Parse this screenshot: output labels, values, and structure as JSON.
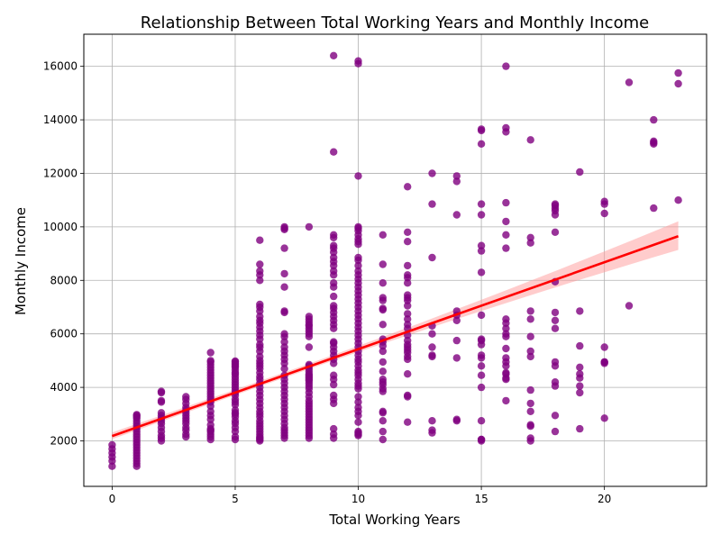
{
  "chart_data": {
    "type": "scatter",
    "title": "Relationship Between Total Working Years and Monthly Income",
    "xlabel": "Total Working Years",
    "ylabel": "Monthly Income",
    "xlim": [
      -1.15,
      24.15
    ],
    "ylim": [
      300,
      17200
    ],
    "xticks": [
      0,
      5,
      10,
      15,
      20
    ],
    "yticks": [
      2000,
      4000,
      6000,
      8000,
      10000,
      12000,
      14000,
      16000
    ],
    "grid": true,
    "legend": "none",
    "point_color": "#800080",
    "point_opacity": 0.8,
    "regression": {
      "color": "#ff0000",
      "band_color": "#ff9a9a",
      "x": [
        0,
        23
      ],
      "y": [
        2180,
        9650
      ],
      "ci_lower": [
        1950,
        8950
      ],
      "ci_upper": [
        2450,
        10400
      ]
    },
    "series": [
      {
        "x": [
          0,
          0,
          0,
          0,
          0,
          0,
          1,
          1,
          1,
          1,
          1,
          1,
          1,
          1,
          1,
          1,
          1,
          1,
          1,
          1,
          1,
          1,
          1,
          1,
          1,
          1,
          1,
          1,
          2,
          2,
          2,
          2,
          2,
          2,
          2,
          2,
          2,
          2,
          2,
          2,
          2,
          2,
          3,
          3,
          3,
          3,
          3,
          3,
          3,
          3,
          3,
          3,
          3,
          3,
          3,
          3,
          4,
          4,
          4,
          4,
          4,
          4,
          4,
          4,
          4,
          4,
          4,
          4,
          4,
          4,
          4,
          4,
          4,
          4,
          4,
          4,
          4,
          4,
          4,
          4,
          4,
          4,
          4,
          4,
          4,
          5,
          5,
          5,
          5,
          5,
          5,
          5,
          5,
          5,
          5,
          5,
          5,
          5,
          5,
          5,
          5,
          5,
          5,
          5,
          5,
          5,
          5,
          5,
          5,
          5,
          5,
          5,
          5,
          5,
          5,
          6,
          6,
          6,
          6,
          6,
          6,
          6,
          6,
          6,
          6,
          6,
          6,
          6,
          6,
          6,
          6,
          6,
          6,
          6,
          6,
          6,
          6,
          6,
          6,
          6,
          6,
          6,
          6,
          6,
          6,
          6,
          6,
          6,
          6,
          6,
          6,
          6,
          6,
          6,
          6,
          6,
          6,
          6,
          6,
          6,
          6,
          7,
          7,
          7,
          7,
          7,
          7,
          7,
          7,
          7,
          7,
          7,
          7,
          7,
          7,
          7,
          7,
          7,
          7,
          7,
          7,
          7,
          7,
          7,
          7,
          7,
          7,
          7,
          7,
          7,
          7,
          7,
          7,
          7,
          7,
          7,
          8,
          8,
          8,
          8,
          8,
          8,
          8,
          8,
          8,
          8,
          8,
          8,
          8,
          8,
          8,
          8,
          8,
          8,
          8,
          8,
          8,
          8,
          8,
          8,
          8,
          8,
          8,
          8,
          8,
          8,
          8,
          8,
          8,
          8,
          8,
          8,
          8,
          8,
          8,
          8,
          8,
          9,
          9,
          9,
          9,
          9,
          9,
          9,
          9,
          9,
          9,
          9,
          9,
          9,
          9,
          9,
          9,
          9,
          9,
          9,
          9,
          9,
          9,
          9,
          9,
          9,
          9,
          9,
          9,
          9,
          9,
          9,
          9,
          9,
          9,
          9,
          9,
          9,
          9,
          10,
          10,
          10,
          10,
          10,
          10,
          10,
          10,
          10,
          10,
          10,
          10,
          10,
          10,
          10,
          10,
          10,
          10,
          10,
          10,
          10,
          10,
          10,
          10,
          10,
          10,
          10,
          10,
          10,
          10,
          10,
          10,
          10,
          10,
          10,
          10,
          10,
          10,
          10,
          10,
          10,
          10,
          10,
          10,
          10,
          10,
          10,
          10,
          10,
          10,
          10,
          10,
          10,
          10,
          10,
          11,
          11,
          11,
          11,
          11,
          11,
          11,
          11,
          11,
          11,
          11,
          11,
          11,
          11,
          11,
          11,
          11,
          11,
          11,
          11,
          11,
          11,
          11,
          11,
          12,
          12,
          12,
          12,
          12,
          12,
          12,
          12,
          12,
          12,
          12,
          12,
          12,
          12,
          12,
          12,
          12,
          12,
          12,
          12,
          12,
          12,
          12,
          12,
          12,
          12,
          12,
          13,
          13,
          13,
          13,
          13,
          13,
          13,
          13,
          13,
          13,
          13,
          14,
          14,
          14,
          14,
          14,
          14,
          14,
          14,
          14,
          14,
          15,
          15,
          15,
          15,
          15,
          15,
          15,
          15,
          15,
          15,
          15,
          15,
          15,
          15,
          15,
          15,
          15,
          15,
          15,
          15,
          15,
          16,
          16,
          16,
          16,
          16,
          16,
          16,
          16,
          16,
          16,
          16,
          16,
          16,
          16,
          16,
          16,
          16,
          16,
          16,
          16,
          16,
          17,
          17,
          17,
          17,
          17,
          17,
          17,
          17,
          17,
          17,
          17,
          17,
          17,
          17,
          17,
          18,
          18,
          18,
          18,
          18,
          18,
          18,
          18,
          18,
          18,
          18,
          18,
          18,
          18,
          18,
          18,
          19,
          19,
          19,
          19,
          19,
          19,
          19,
          19,
          19,
          20,
          20,
          20,
          20,
          20,
          20,
          20,
          20,
          21,
          21,
          22,
          22,
          22,
          22,
          22,
          23,
          23,
          23
        ],
        "y": [
          1050,
          1250,
          1400,
          1550,
          1700,
          1850,
          1050,
          1150,
          1250,
          1350,
          1450,
          1550,
          1650,
          1750,
          1850,
          1950,
          2050,
          2150,
          2250,
          2350,
          2450,
          2550,
          2650,
          2750,
          2850,
          2950,
          2980,
          2900,
          2000,
          2100,
          2200,
          2350,
          2500,
          2650,
          2750,
          2850,
          2950,
          3050,
          3450,
          3500,
          3800,
          3850,
          2150,
          2250,
          2400,
          2500,
          2650,
          2750,
          2850,
          2950,
          3050,
          3150,
          3250,
          3400,
          3550,
          3650,
          2050,
          2250,
          2350,
          2450,
          2600,
          2800,
          2950,
          3100,
          3300,
          3450,
          3550,
          3650,
          3750,
          3850,
          3950,
          4050,
          4150,
          4250,
          4350,
          4450,
          4550,
          4650,
          4750,
          4850,
          4950,
          5000,
          5300,
          2150,
          2400,
          2050,
          2150,
          2350,
          2500,
          2650,
          2750,
          2900,
          3000,
          3050,
          3150,
          3550,
          3700,
          3800,
          3900,
          4000,
          4100,
          4200,
          4300,
          4400,
          4500,
          4550,
          4650,
          4750,
          4800,
          4850,
          4900,
          4950,
          4980,
          3350,
          3450,
          2000,
          2050,
          2100,
          2150,
          2250,
          2350,
          2450,
          2550,
          2650,
          2750,
          2900,
          3000,
          3100,
          3250,
          3400,
          3550,
          3700,
          3850,
          4000,
          4150,
          4300,
          4400,
          4550,
          4700,
          4800,
          4900,
          5000,
          5150,
          5350,
          5500,
          5600,
          5800,
          5950,
          6100,
          6250,
          6400,
          6500,
          6650,
          6850,
          7000,
          7100,
          8000,
          8200,
          8350,
          8600,
          9500,
          2100,
          2200,
          2300,
          2400,
          2500,
          2650,
          2800,
          2950,
          3100,
          3250,
          3400,
          3550,
          3700,
          3850,
          4000,
          4150,
          4300,
          4450,
          4700,
          4900,
          5050,
          5200,
          5350,
          5500,
          5700,
          5900,
          6000,
          6800,
          6850,
          7750,
          8250,
          9200,
          9950,
          10000,
          9900,
          2100,
          2200,
          2300,
          2400,
          2500,
          2600,
          2700,
          2800,
          2900,
          3000,
          3100,
          3200,
          3300,
          3400,
          3500,
          3650,
          3800,
          3950,
          4050,
          4150,
          4300,
          4400,
          4500,
          4600,
          4700,
          4800,
          4850,
          5500,
          5900,
          6000,
          6100,
          6200,
          6300,
          6350,
          6450,
          6550,
          6650,
          4250,
          4350,
          4450,
          10000,
          2100,
          2250,
          2450,
          3400,
          3550,
          3700,
          4100,
          4300,
          4450,
          4900,
          5050,
          5200,
          5350,
          5500,
          5650,
          5700,
          6200,
          6350,
          6500,
          6650,
          6800,
          6950,
          7050,
          7400,
          7750,
          7900,
          8200,
          8350,
          8550,
          8700,
          8850,
          9050,
          9200,
          9300,
          9600,
          9700,
          12800,
          16400,
          2200,
          2250,
          2350,
          2700,
          2950,
          3100,
          3250,
          3450,
          3650,
          3950,
          4050,
          4150,
          4300,
          4450,
          4550,
          4650,
          4800,
          4950,
          5050,
          5200,
          5350,
          5500,
          5650,
          5800,
          5950,
          6100,
          6250,
          6400,
          6550,
          6700,
          6850,
          7000,
          7150,
          7300,
          7450,
          7600,
          7750,
          7900,
          8050,
          8200,
          8350,
          8550,
          8750,
          8850,
          9350,
          9450,
          9550,
          9700,
          9850,
          9950,
          10000,
          11900,
          16200,
          16100,
          2300,
          2050,
          2350,
          3050,
          3100,
          3850,
          3950,
          4100,
          4200,
          4300,
          4600,
          4950,
          5350,
          5550,
          5700,
          5800,
          6350,
          6900,
          6950,
          7250,
          7350,
          7900,
          8600,
          9700,
          2750,
          2700,
          3650,
          3700,
          4500,
          5050,
          5150,
          5300,
          5400,
          5500,
          5600,
          5750,
          5950,
          6200,
          6350,
          6550,
          6750,
          7050,
          7250,
          7350,
          7450,
          7900,
          8100,
          8200,
          8550,
          9450,
          9800,
          11500,
          2300,
          2400,
          2750,
          5150,
          5200,
          5500,
          6000,
          6300,
          8850,
          10850,
          12000,
          2750,
          5100,
          5750,
          6500,
          6700,
          6850,
          10450,
          11700,
          11900,
          2800,
          2000,
          2050,
          2750,
          4000,
          4450,
          4800,
          5200,
          5600,
          5750,
          5800,
          6700,
          8300,
          9100,
          9300,
          10450,
          10850,
          13100,
          13600,
          13650,
          2050,
          5100,
          3500,
          4300,
          4350,
          4500,
          4550,
          4800,
          5100,
          5450,
          5900,
          6000,
          6200,
          6400,
          6550,
          9200,
          9700,
          10200,
          10900,
          13550,
          13700,
          16000,
          4950,
          2000,
          2100,
          2550,
          2600,
          3100,
          3400,
          3900,
          5150,
          5350,
          5900,
          6550,
          6850,
          9400,
          9600,
          13250,
          2350,
          2950,
          4050,
          4200,
          4800,
          4950,
          6200,
          6500,
          6800,
          7950,
          9800,
          10450,
          10600,
          10700,
          10800,
          10850,
          2450,
          3800,
          4050,
          4350,
          4750,
          4500,
          5550,
          6850,
          12050,
          2850,
          4900,
          4950,
          5500,
          10500,
          10850,
          10950,
          4950,
          7050,
          15400,
          10700,
          13100,
          13200,
          14000,
          13150,
          11000,
          15350,
          15750
        ]
      }
    ]
  }
}
